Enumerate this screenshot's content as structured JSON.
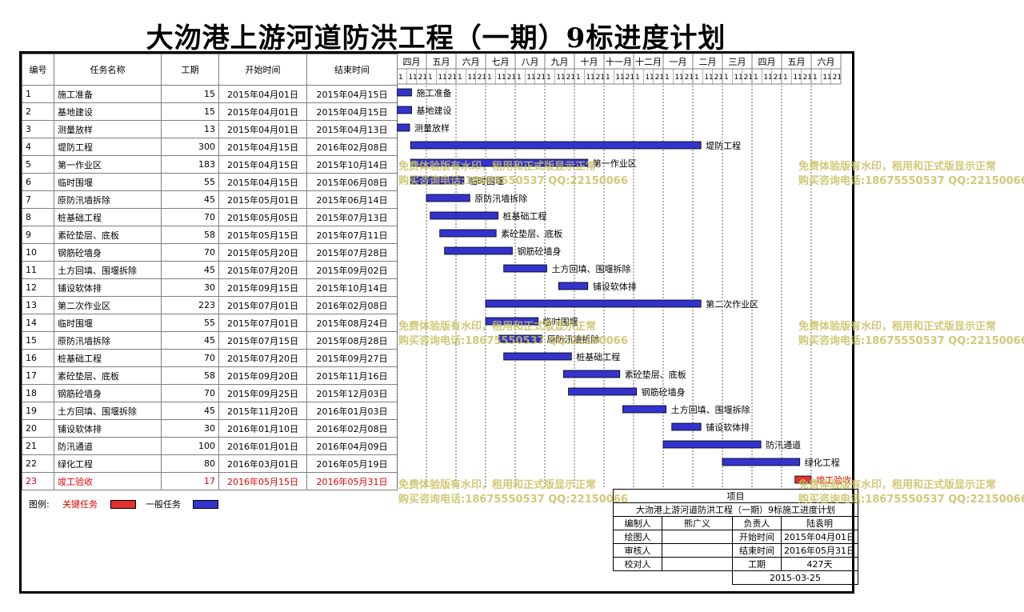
{
  "page": {
    "title": "大沕港上游河道防洪工程（一期）9标进度计划",
    "headers": {
      "id": "编号",
      "name": "任务名称",
      "duration": "工期",
      "start": "开始时间",
      "end": "结束时间"
    }
  },
  "chart_data": {
    "type": "gantt",
    "months": [
      "四月",
      "五月",
      "六月",
      "七月",
      "八月",
      "九月",
      "十月",
      "十一月",
      "十二月",
      "一月",
      "二月",
      "三月",
      "四月",
      "五月",
      "六月"
    ],
    "month_starts": [
      "2015-04-01",
      "2015-05-01",
      "2015-06-01",
      "2015-07-01",
      "2015-08-01",
      "2015-09-01",
      "2015-10-01",
      "2015-11-01",
      "2015-12-01",
      "2016-01-01",
      "2016-02-01",
      "2016-03-01",
      "2016-04-01",
      "2016-05-01",
      "2016-06-01"
    ],
    "subticks": [
      "1",
      "11",
      "21"
    ],
    "tasks": [
      {
        "id": "1",
        "name": "施工准备",
        "duration": "15",
        "start": "2015年04月01日",
        "end": "2015年04月15日",
        "s": "2015-04-01",
        "e": "2015-04-15",
        "critical": false
      },
      {
        "id": "2",
        "name": "基地建设",
        "duration": "15",
        "start": "2015年04月01日",
        "end": "2015年04月15日",
        "s": "2015-04-01",
        "e": "2015-04-15",
        "critical": false
      },
      {
        "id": "3",
        "name": "测量放样",
        "duration": "13",
        "start": "2015年04月01日",
        "end": "2015年04月13日",
        "s": "2015-04-01",
        "e": "2015-04-13",
        "critical": false
      },
      {
        "id": "4",
        "name": "堤防工程",
        "duration": "300",
        "start": "2015年04月15日",
        "end": "2016年02月08日",
        "s": "2015-04-15",
        "e": "2016-02-08",
        "critical": false
      },
      {
        "id": "5",
        "name": "第一作业区",
        "duration": "183",
        "start": "2015年04月15日",
        "end": "2015年10月14日",
        "s": "2015-04-15",
        "e": "2015-10-14",
        "critical": false
      },
      {
        "id": "6",
        "name": "临时围堰",
        "duration": "55",
        "start": "2015年04月15日",
        "end": "2015年06月08日",
        "s": "2015-04-15",
        "e": "2015-06-08",
        "critical": false
      },
      {
        "id": "7",
        "name": "原防汛墙拆除",
        "duration": "45",
        "start": "2015年05月01日",
        "end": "2015年06月14日",
        "s": "2015-05-01",
        "e": "2015-06-14",
        "critical": false
      },
      {
        "id": "8",
        "name": "桩基础工程",
        "duration": "70",
        "start": "2015年05月05日",
        "end": "2015年07月13日",
        "s": "2015-05-05",
        "e": "2015-07-13",
        "critical": false
      },
      {
        "id": "9",
        "name": "素砼垫层、底板",
        "duration": "58",
        "start": "2015年05月15日",
        "end": "2015年07月11日",
        "s": "2015-05-15",
        "e": "2015-07-11",
        "critical": false
      },
      {
        "id": "10",
        "name": "钢筋砼墙身",
        "duration": "70",
        "start": "2015年05月20日",
        "end": "2015年07月28日",
        "s": "2015-05-20",
        "e": "2015-07-28",
        "critical": false
      },
      {
        "id": "11",
        "name": "土方回填、围堰拆除",
        "duration": "45",
        "start": "2015年07月20日",
        "end": "2015年09月02日",
        "s": "2015-07-20",
        "e": "2015-09-02",
        "critical": false
      },
      {
        "id": "12",
        "name": "铺设软体排",
        "duration": "30",
        "start": "2015年09月15日",
        "end": "2015年10月14日",
        "s": "2015-09-15",
        "e": "2015-10-14",
        "critical": false
      },
      {
        "id": "13",
        "name": "第二次作业区",
        "duration": "223",
        "start": "2015年07月01日",
        "end": "2016年02月08日",
        "s": "2015-07-01",
        "e": "2016-02-08",
        "critical": false
      },
      {
        "id": "14",
        "name": "临时围堰",
        "duration": "55",
        "start": "2015年07月01日",
        "end": "2015年08月24日",
        "s": "2015-07-01",
        "e": "2015-08-24",
        "critical": false
      },
      {
        "id": "15",
        "name": "原防汛墙拆除",
        "duration": "45",
        "start": "2015年07月15日",
        "end": "2015年08月28日",
        "s": "2015-07-15",
        "e": "2015-08-28",
        "critical": false
      },
      {
        "id": "16",
        "name": "桩基础工程",
        "duration": "70",
        "start": "2015年07月20日",
        "end": "2015年09月27日",
        "s": "2015-07-20",
        "e": "2015-09-27",
        "critical": false
      },
      {
        "id": "17",
        "name": "素砼垫层、底板",
        "duration": "58",
        "start": "2015年09月20日",
        "end": "2015年11月16日",
        "s": "2015-09-20",
        "e": "2015-11-16",
        "critical": false
      },
      {
        "id": "18",
        "name": "钢筋砼墙身",
        "duration": "70",
        "start": "2015年09月25日",
        "end": "2015年12月03日",
        "s": "2015-09-25",
        "e": "2015-12-03",
        "critical": false
      },
      {
        "id": "19",
        "name": "土方回填、围堰拆除",
        "duration": "45",
        "start": "2015年11月20日",
        "end": "2016年01月03日",
        "s": "2015-11-20",
        "e": "2016-01-03",
        "critical": false
      },
      {
        "id": "20",
        "name": "铺设软体排",
        "duration": "30",
        "start": "2016年01月10日",
        "end": "2016年02月08日",
        "s": "2016-01-10",
        "e": "2016-02-08",
        "critical": false
      },
      {
        "id": "21",
        "name": "防汛通道",
        "duration": "100",
        "start": "2016年01月01日",
        "end": "2016年04月09日",
        "s": "2016-01-01",
        "e": "2016-04-09",
        "critical": false
      },
      {
        "id": "22",
        "name": "绿化工程",
        "duration": "80",
        "start": "2016年03月01日",
        "end": "2016年05月19日",
        "s": "2016-03-01",
        "e": "2016-05-19",
        "critical": false
      },
      {
        "id": "23",
        "name": "竣工验收",
        "duration": "17",
        "start": "2016年05月15日",
        "end": "2016年05月31日",
        "s": "2016-05-15",
        "e": "2016-05-31",
        "critical": true
      }
    ],
    "colors": {
      "normal": "#3333cc",
      "critical": "#e03030"
    }
  },
  "legend": {
    "label": "图例:",
    "critical": "关键任务",
    "normal": "一般任务"
  },
  "info": {
    "item_label": "项目",
    "project": "大沕港上游河道防洪工程（一期）9标施工进度计划",
    "rows": [
      {
        "a": "编制人",
        "b": "熊广义",
        "c": "负责人",
        "d": "陆袁明"
      },
      {
        "a": "绘图人",
        "b": "",
        "c": "开始时间",
        "d": "2015年04月01日"
      },
      {
        "a": "审核人",
        "b": "",
        "c": "结束时间",
        "d": "2016年05月31日"
      },
      {
        "a": "校对人",
        "b": "",
        "c": "工期",
        "d": "427天"
      }
    ],
    "date": "2015-03-25"
  },
  "watermark": {
    "line1": "免费体验版有水印，租用和正式版显示正常",
    "line2": "购买咨询电话:18675550537 QQ:22150066"
  }
}
